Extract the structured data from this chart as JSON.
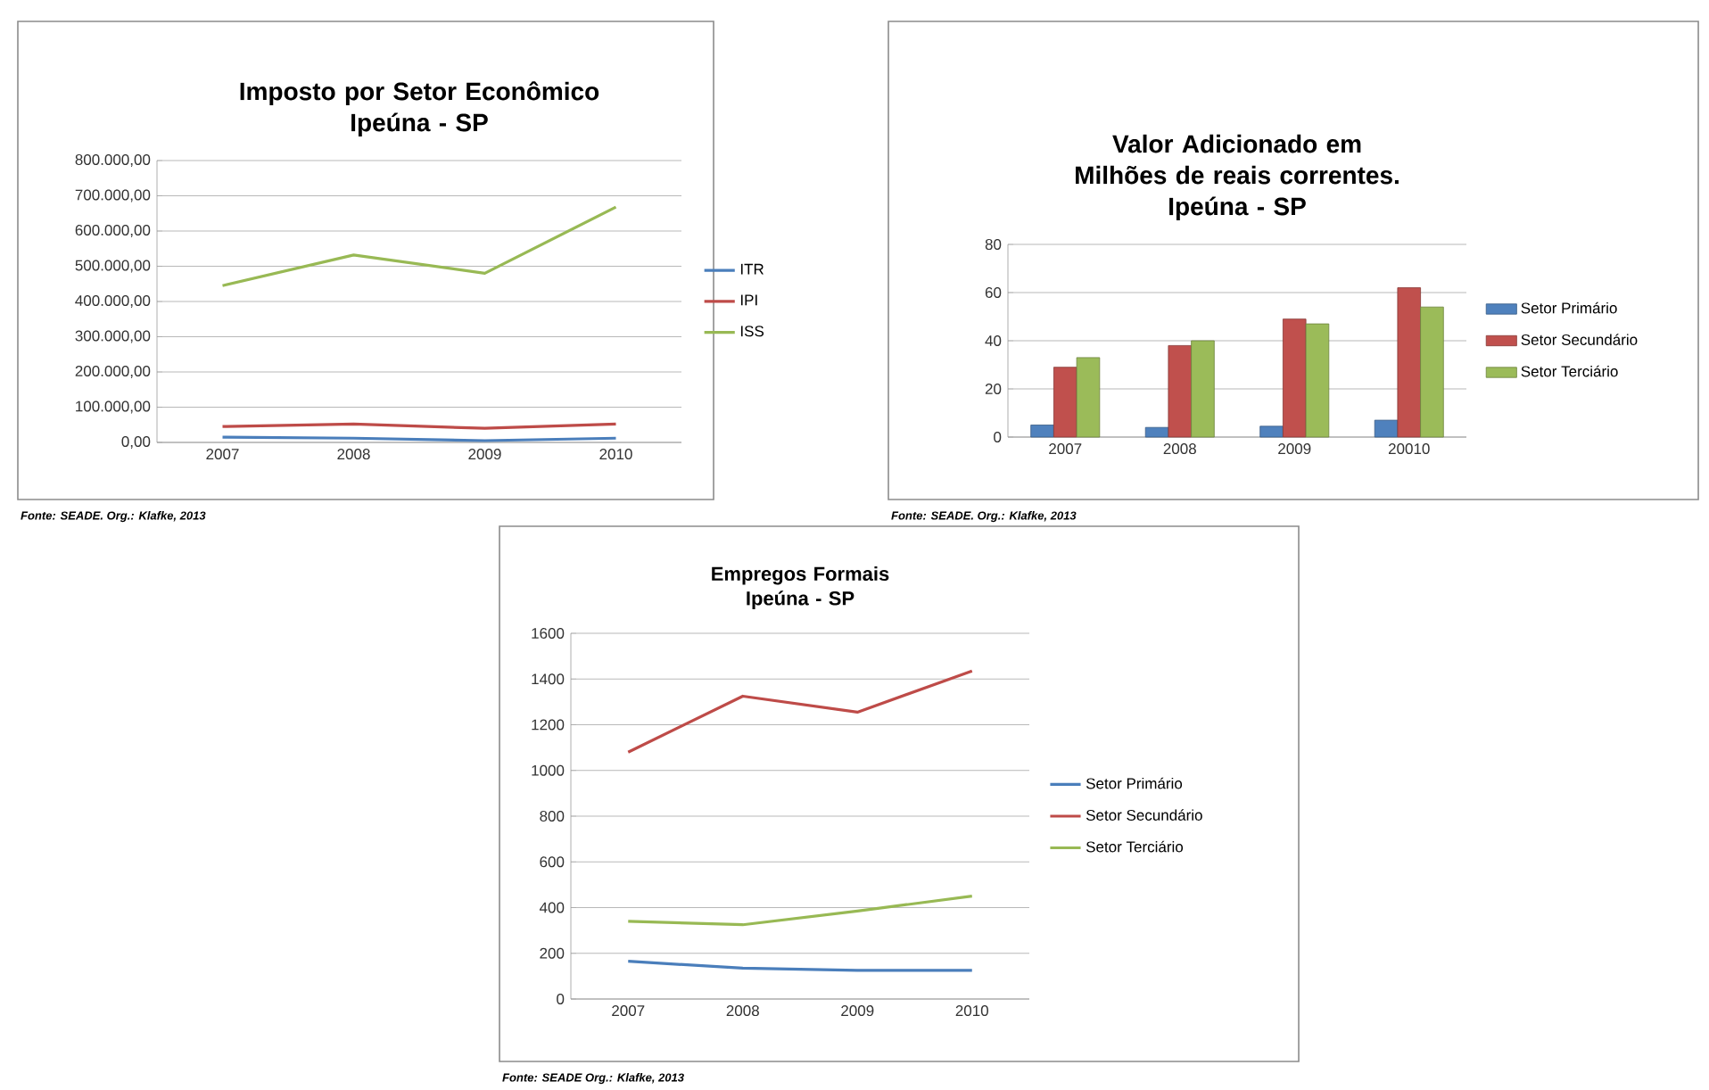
{
  "chart_data": [
    {
      "type": "line",
      "title": "Imposto por Setor Econômico",
      "subtitle": "Ipeúna - SP",
      "categories": [
        "2007",
        "2008",
        "2009",
        "2010"
      ],
      "series": [
        {
          "name": "ITR",
          "color": "#4a7ebb",
          "values": [
            15000,
            12000,
            5000,
            12000
          ]
        },
        {
          "name": "IPI",
          "color": "#be4b48",
          "values": [
            45000,
            52000,
            40000,
            52000
          ]
        },
        {
          "name": "ISS",
          "color": "#98b954",
          "values": [
            445000,
            532000,
            480000,
            668000
          ]
        }
      ],
      "ylim": [
        0,
        800000
      ],
      "yticks": [
        {
          "value": 0,
          "label": "0,00"
        },
        {
          "value": 100000,
          "label": "100.000,00"
        },
        {
          "value": 200000,
          "label": "200.000,00"
        },
        {
          "value": 300000,
          "label": "300.000,00"
        },
        {
          "value": 400000,
          "label": "400.000,00"
        },
        {
          "value": 500000,
          "label": "500.000,00"
        },
        {
          "value": 600000,
          "label": "600.000,00"
        },
        {
          "value": 700000,
          "label": "700.000,00"
        },
        {
          "value": 800000,
          "label": "800.000,00"
        }
      ],
      "grid": "y",
      "legend": "right",
      "annotations": [
        "Fonte: SEADE. Org.: Klafke, 2013"
      ]
    },
    {
      "type": "bar",
      "title": "Valor Adicionado em Milhões de reais correntes.",
      "subtitle": "Ipeúna - SP",
      "categories": [
        "2007",
        "2008",
        "2009",
        "20010"
      ],
      "series": [
        {
          "name": "Setor Primário",
          "color": "#4f81bd",
          "values": [
            5,
            4,
            4.5,
            7
          ]
        },
        {
          "name": "Setor Secundário",
          "color": "#c0504d",
          "values": [
            29,
            38,
            49,
            62
          ]
        },
        {
          "name": "Setor Terciário",
          "color": "#9bbb59",
          "values": [
            33,
            40,
            47,
            54
          ]
        }
      ],
      "ylim": [
        0,
        80
      ],
      "yticks": [
        0,
        20,
        40,
        60,
        80
      ],
      "grid": "y",
      "legend": "right",
      "annotations": [
        "Fonte: SEADE. Org.: Klafke, 2013"
      ]
    },
    {
      "type": "line",
      "title": "Empregos Formais",
      "subtitle": "Ipeúna - SP",
      "categories": [
        "2007",
        "2008",
        "2009",
        "2010"
      ],
      "series": [
        {
          "name": "Setor Primário",
          "color": "#4a7ebb",
          "values": [
            165,
            135,
            125,
            125
          ]
        },
        {
          "name": "Setor Secundário",
          "color": "#be4b48",
          "values": [
            1080,
            1325,
            1255,
            1435
          ]
        },
        {
          "name": "Setor Terciário",
          "color": "#98b954",
          "values": [
            340,
            325,
            385,
            450
          ]
        }
      ],
      "ylim": [
        0,
        1600
      ],
      "yticks": [
        0,
        200,
        400,
        600,
        800,
        1000,
        1200,
        1400,
        1600
      ],
      "grid": "y",
      "legend": "right",
      "annotations": [
        "Fonte: SEADE Org.: Klafke, 2013"
      ]
    }
  ]
}
